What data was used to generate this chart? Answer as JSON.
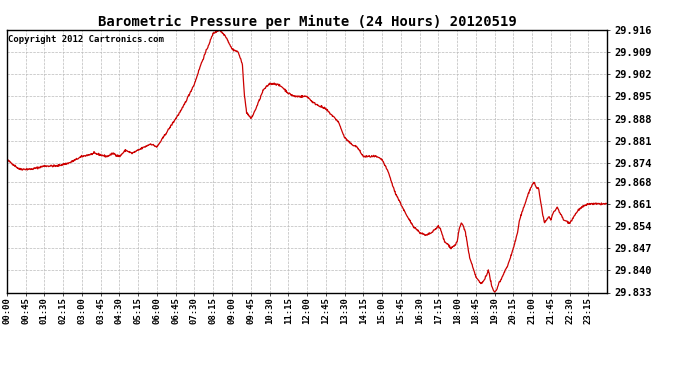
{
  "title": "Barometric Pressure per Minute (24 Hours) 20120519",
  "copyright": "Copyright 2012 Cartronics.com",
  "line_color": "#cc0000",
  "background_color": "#ffffff",
  "grid_color": "#aaaaaa",
  "ylim": [
    29.833,
    29.916
  ],
  "yticks": [
    29.833,
    29.84,
    29.847,
    29.854,
    29.861,
    29.868,
    29.874,
    29.881,
    29.888,
    29.895,
    29.902,
    29.909,
    29.916
  ],
  "xtick_labels": [
    "00:00",
    "00:45",
    "01:30",
    "02:15",
    "03:00",
    "03:45",
    "04:30",
    "05:15",
    "06:00",
    "06:45",
    "07:30",
    "08:15",
    "09:00",
    "09:45",
    "10:30",
    "11:15",
    "12:00",
    "12:45",
    "13:30",
    "14:15",
    "15:00",
    "15:45",
    "16:30",
    "17:15",
    "18:00",
    "18:45",
    "19:30",
    "20:15",
    "21:00",
    "21:45",
    "22:30",
    "23:15"
  ],
  "keypoints": [
    [
      0,
      29.875
    ],
    [
      30,
      29.872
    ],
    [
      60,
      29.872
    ],
    [
      90,
      29.873
    ],
    [
      120,
      29.873
    ],
    [
      150,
      29.874
    ],
    [
      180,
      29.876
    ],
    [
      210,
      29.877
    ],
    [
      240,
      29.876
    ],
    [
      255,
      29.877
    ],
    [
      270,
      29.876
    ],
    [
      285,
      29.878
    ],
    [
      300,
      29.877
    ],
    [
      315,
      29.878
    ],
    [
      330,
      29.879
    ],
    [
      345,
      29.88
    ],
    [
      360,
      29.879
    ],
    [
      375,
      29.882
    ],
    [
      390,
      29.885
    ],
    [
      405,
      29.888
    ],
    [
      420,
      29.891
    ],
    [
      435,
      29.895
    ],
    [
      450,
      29.899
    ],
    [
      465,
      29.905
    ],
    [
      480,
      29.91
    ],
    [
      495,
      29.915
    ],
    [
      510,
      29.916
    ],
    [
      525,
      29.914
    ],
    [
      540,
      29.91
    ],
    [
      555,
      29.909
    ],
    [
      565,
      29.905
    ],
    [
      570,
      29.895
    ],
    [
      575,
      29.89
    ],
    [
      585,
      29.888
    ],
    [
      590,
      29.889
    ],
    [
      600,
      29.892
    ],
    [
      615,
      29.897
    ],
    [
      630,
      29.899
    ],
    [
      645,
      29.899
    ],
    [
      660,
      29.898
    ],
    [
      675,
      29.896
    ],
    [
      690,
      29.895
    ],
    [
      705,
      29.895
    ],
    [
      720,
      29.895
    ],
    [
      735,
      29.893
    ],
    [
      750,
      29.892
    ],
    [
      765,
      29.891
    ],
    [
      780,
      29.889
    ],
    [
      795,
      29.887
    ],
    [
      810,
      29.882
    ],
    [
      825,
      29.88
    ],
    [
      840,
      29.879
    ],
    [
      855,
      29.876
    ],
    [
      870,
      29.876
    ],
    [
      885,
      29.876
    ],
    [
      900,
      29.875
    ],
    [
      915,
      29.871
    ],
    [
      930,
      29.865
    ],
    [
      945,
      29.861
    ],
    [
      960,
      29.857
    ],
    [
      975,
      29.854
    ],
    [
      990,
      29.852
    ],
    [
      1005,
      29.851
    ],
    [
      1020,
      29.852
    ],
    [
      1035,
      29.854
    ],
    [
      1040,
      29.853
    ],
    [
      1050,
      29.849
    ],
    [
      1060,
      29.848
    ],
    [
      1065,
      29.847
    ],
    [
      1075,
      29.848
    ],
    [
      1080,
      29.849
    ],
    [
      1085,
      29.853
    ],
    [
      1090,
      29.855
    ],
    [
      1095,
      29.854
    ],
    [
      1100,
      29.852
    ],
    [
      1105,
      29.848
    ],
    [
      1110,
      29.844
    ],
    [
      1120,
      29.84
    ],
    [
      1125,
      29.838
    ],
    [
      1135,
      29.836
    ],
    [
      1140,
      29.836
    ],
    [
      1145,
      29.837
    ],
    [
      1155,
      29.84
    ],
    [
      1160,
      29.837
    ],
    [
      1165,
      29.834
    ],
    [
      1170,
      29.833
    ],
    [
      1175,
      29.834
    ],
    [
      1180,
      29.836
    ],
    [
      1185,
      29.837
    ],
    [
      1195,
      29.84
    ],
    [
      1200,
      29.841
    ],
    [
      1210,
      29.845
    ],
    [
      1215,
      29.847
    ],
    [
      1225,
      29.852
    ],
    [
      1230,
      29.856
    ],
    [
      1240,
      29.86
    ],
    [
      1250,
      29.864
    ],
    [
      1260,
      29.867
    ],
    [
      1265,
      29.868
    ],
    [
      1270,
      29.866
    ],
    [
      1275,
      29.866
    ],
    [
      1280,
      29.862
    ],
    [
      1285,
      29.858
    ],
    [
      1290,
      29.855
    ],
    [
      1295,
      29.856
    ],
    [
      1300,
      29.857
    ],
    [
      1305,
      29.856
    ],
    [
      1310,
      29.858
    ],
    [
      1320,
      29.86
    ],
    [
      1335,
      29.856
    ],
    [
      1350,
      29.855
    ],
    [
      1360,
      29.857
    ],
    [
      1370,
      29.859
    ],
    [
      1380,
      29.86
    ],
    [
      1395,
      29.861
    ],
    [
      1410,
      29.861
    ],
    [
      1425,
      29.861
    ],
    [
      1440,
      29.861
    ]
  ]
}
